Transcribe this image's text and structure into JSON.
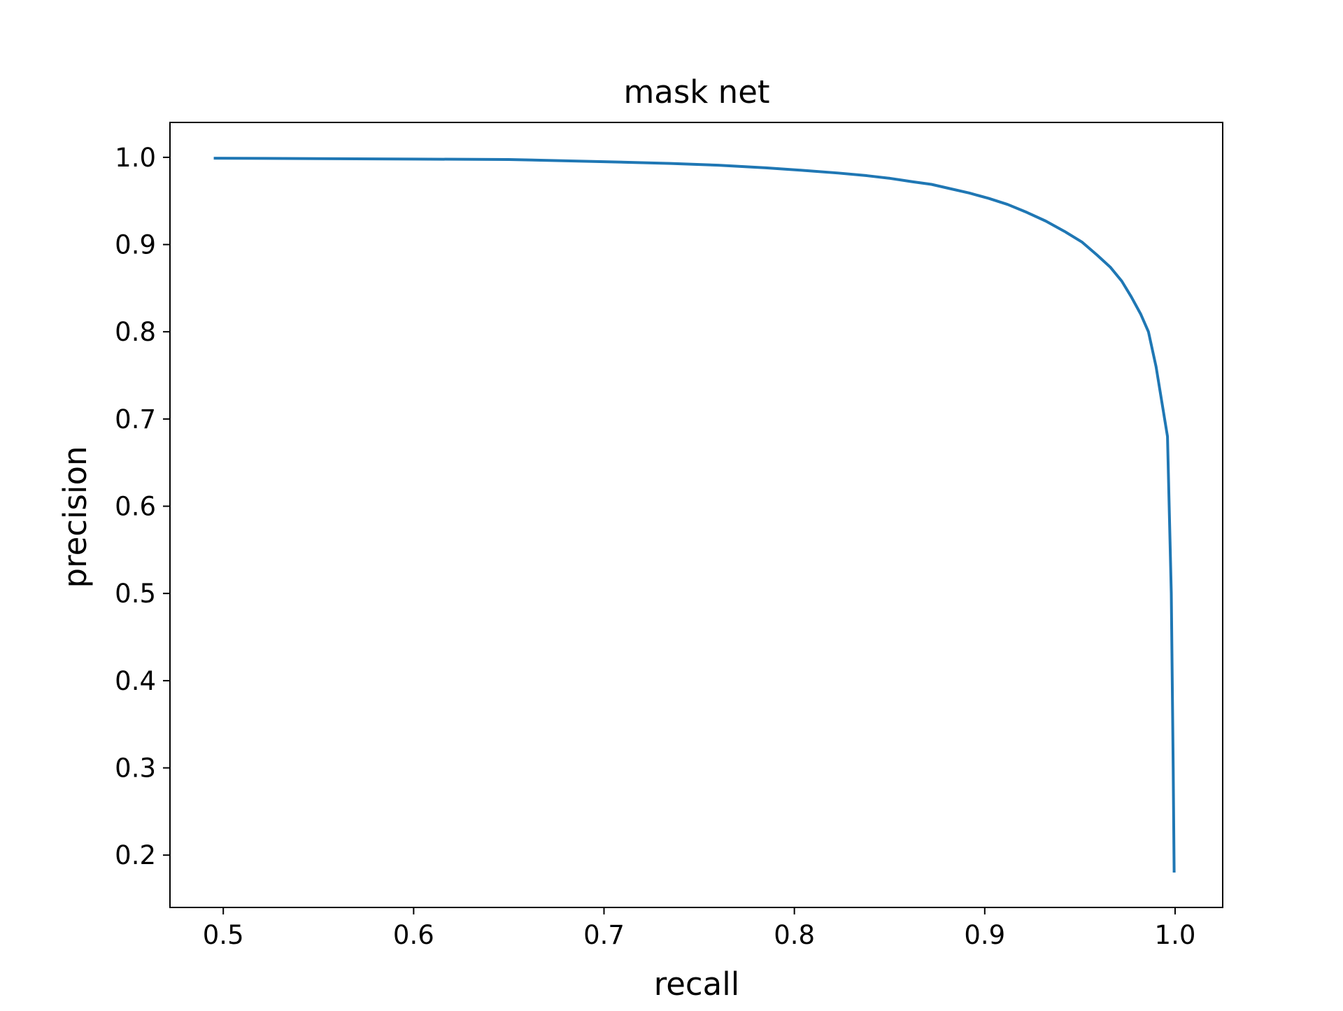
{
  "chart_data": {
    "type": "line",
    "title": "mask net",
    "xlabel": "recall",
    "ylabel": "precision",
    "xlim": [
      0.472,
      1.025
    ],
    "ylim": [
      0.14,
      1.04
    ],
    "xticks": [
      0.5,
      0.6,
      0.7,
      0.8,
      0.9,
      1.0
    ],
    "yticks": [
      0.2,
      0.3,
      0.4,
      0.5,
      0.6,
      0.7,
      0.8,
      0.9,
      1.0
    ],
    "xtick_labels": [
      "0.5",
      "0.6",
      "0.7",
      "0.8",
      "0.9",
      "1.0"
    ],
    "ytick_labels": [
      "0.2",
      "0.3",
      "0.4",
      "0.5",
      "0.6",
      "0.7",
      "0.8",
      "0.9",
      "1.0"
    ],
    "grid": false,
    "series": [
      {
        "color": "#1f77b4",
        "x": [
          0.495,
          0.55,
          0.6,
          0.65,
          0.7,
          0.735,
          0.76,
          0.785,
          0.805,
          0.823,
          0.838,
          0.85,
          0.862,
          0.872,
          0.882,
          0.892,
          0.902,
          0.912,
          0.922,
          0.932,
          0.942,
          0.951,
          0.959,
          0.966,
          0.972,
          0.977,
          0.982,
          0.986,
          0.99,
          0.993,
          0.996,
          0.998,
          0.999,
          0.9995
        ],
        "y": [
          0.999,
          0.9985,
          0.998,
          0.9975,
          0.995,
          0.993,
          0.991,
          0.988,
          0.985,
          0.982,
          0.979,
          0.976,
          0.972,
          0.969,
          0.964,
          0.959,
          0.953,
          0.946,
          0.937,
          0.927,
          0.915,
          0.903,
          0.888,
          0.874,
          0.858,
          0.84,
          0.82,
          0.8,
          0.76,
          0.72,
          0.68,
          0.5,
          0.3,
          0.18
        ]
      }
    ]
  }
}
